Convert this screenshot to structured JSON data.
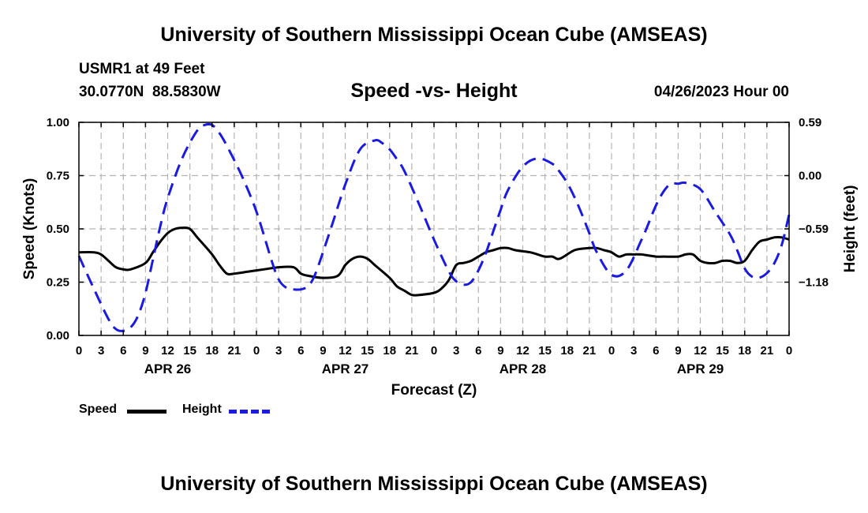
{
  "header": {
    "title": "University of Southern Mississippi Ocean Cube (AMSEAS)",
    "station": "USMR1 at 49 Feet",
    "coords": "30.0770N  88.5830W",
    "subtitle": "Speed -vs- Height",
    "timestamp": "04/26/2023 Hour 00"
  },
  "footer": {
    "title": "University of Southern Mississippi Ocean Cube (AMSEAS)"
  },
  "legend": {
    "speed": "Speed",
    "height": "Height"
  },
  "colors": {
    "speed": "#000000",
    "height": "#1a1ae0",
    "grid": "#b4b4b4"
  },
  "chart_data": {
    "type": "line",
    "xlabel": "Forecast (Z)",
    "ylabel": "Speed (Knots)",
    "y2label": "Height (feet)",
    "xlim": [
      0,
      96
    ],
    "ylim": [
      0,
      1
    ],
    "y2lim": [
      -1.77,
      0.59
    ],
    "x_ticks": [
      0,
      3,
      6,
      9,
      12,
      15,
      18,
      21,
      24,
      27,
      30,
      33,
      36,
      39,
      42,
      45,
      48,
      51,
      54,
      57,
      60,
      63,
      66,
      69,
      72,
      75,
      78,
      81,
      84,
      87,
      90,
      93,
      96
    ],
    "x_tick_labels": [
      "0",
      "3",
      "6",
      "9",
      "12",
      "15",
      "18",
      "21",
      "0",
      "3",
      "6",
      "9",
      "12",
      "15",
      "18",
      "21",
      "0",
      "3",
      "6",
      "9",
      "12",
      "15",
      "18",
      "21",
      "0",
      "3",
      "6",
      "9",
      "12",
      "15",
      "18",
      "21",
      "0"
    ],
    "date_labels": [
      {
        "x": 12,
        "label": "APR 26"
      },
      {
        "x": 36,
        "label": "APR 27"
      },
      {
        "x": 60,
        "label": "APR 28"
      },
      {
        "x": 84,
        "label": "APR 29"
      }
    ],
    "y_ticks": [
      0,
      0.25,
      0.5,
      0.75,
      1.0
    ],
    "y_tick_labels": [
      "0.00",
      "0.25",
      "0.50",
      "0.75",
      "1.00"
    ],
    "y2_ticks": [
      -1.18,
      -0.59,
      0.0,
      0.59
    ],
    "y2_tick_labels": [
      "−1.18",
      "−0.59",
      "0.00",
      "0.59"
    ],
    "series": [
      {
        "name": "Speed",
        "axis": "left",
        "x": [
          0,
          2,
          3,
          4,
          5,
          6,
          7,
          9,
          10,
          11,
          12,
          13,
          14,
          15,
          16,
          18,
          19,
          20,
          21,
          23,
          25,
          27,
          29,
          30,
          31,
          33,
          35,
          36,
          37,
          38,
          39,
          40,
          42,
          43,
          44,
          45,
          46,
          48,
          49,
          50,
          51,
          52,
          53,
          54,
          55,
          56,
          57,
          58,
          59,
          61,
          62,
          63,
          64,
          65,
          67,
          69,
          70,
          71,
          72,
          73,
          74,
          75,
          76,
          78,
          79,
          81,
          82,
          83,
          84,
          85,
          86,
          87,
          88,
          89,
          90,
          91,
          92,
          93,
          94,
          95,
          96
        ],
        "values": [
          0.39,
          0.39,
          0.38,
          0.35,
          0.32,
          0.31,
          0.31,
          0.34,
          0.39,
          0.44,
          0.48,
          0.5,
          0.505,
          0.5,
          0.46,
          0.38,
          0.33,
          0.29,
          0.29,
          0.3,
          0.31,
          0.32,
          0.32,
          0.29,
          0.28,
          0.27,
          0.28,
          0.33,
          0.36,
          0.37,
          0.36,
          0.33,
          0.27,
          0.23,
          0.21,
          0.19,
          0.19,
          0.2,
          0.22,
          0.26,
          0.33,
          0.34,
          0.35,
          0.37,
          0.39,
          0.4,
          0.41,
          0.41,
          0.4,
          0.39,
          0.38,
          0.37,
          0.37,
          0.36,
          0.4,
          0.41,
          0.41,
          0.4,
          0.39,
          0.37,
          0.38,
          0.38,
          0.38,
          0.37,
          0.37,
          0.37,
          0.38,
          0.38,
          0.35,
          0.34,
          0.34,
          0.35,
          0.35,
          0.34,
          0.35,
          0.4,
          0.44,
          0.45,
          0.46,
          0.46,
          0.45
        ]
      },
      {
        "name": "Height",
        "axis": "right",
        "x": [
          0,
          2,
          4,
          5,
          6,
          7,
          8,
          9,
          10,
          11,
          12,
          14,
          16,
          17,
          18,
          19,
          20,
          22,
          24,
          26,
          27,
          28,
          29,
          30,
          31,
          32,
          34,
          36,
          38,
          40,
          41,
          42,
          43,
          44,
          46,
          48,
          50,
          51,
          52,
          53,
          54,
          55,
          56,
          57,
          58,
          60,
          62,
          64,
          65,
          66,
          67,
          68,
          69,
          70,
          72,
          74,
          76,
          77,
          78,
          79,
          80,
          81,
          82,
          84,
          86,
          88,
          89,
          90,
          91,
          92,
          93,
          94,
          95,
          96
        ],
        "values": [
          -0.89,
          -1.25,
          -1.59,
          -1.7,
          -1.72,
          -1.68,
          -1.55,
          -1.3,
          -0.93,
          -0.56,
          -0.25,
          0.2,
          0.5,
          0.56,
          0.56,
          0.47,
          0.33,
          0.0,
          -0.4,
          -0.93,
          -1.15,
          -1.24,
          -1.26,
          -1.26,
          -1.22,
          -1.08,
          -0.6,
          -0.1,
          0.29,
          0.39,
          0.36,
          0.29,
          0.18,
          0.05,
          -0.32,
          -0.71,
          -1.06,
          -1.17,
          -1.21,
          -1.18,
          -1.05,
          -0.86,
          -0.62,
          -0.38,
          -0.16,
          0.1,
          0.19,
          0.13,
          0.04,
          -0.08,
          -0.24,
          -0.43,
          -0.64,
          -0.85,
          -1.1,
          -1.05,
          -0.72,
          -0.53,
          -0.33,
          -0.18,
          -0.09,
          -0.09,
          -0.08,
          -0.15,
          -0.4,
          -0.65,
          -0.83,
          -1.03,
          -1.12,
          -1.13,
          -1.08,
          -0.97,
          -0.77,
          -0.43
        ]
      }
    ]
  }
}
